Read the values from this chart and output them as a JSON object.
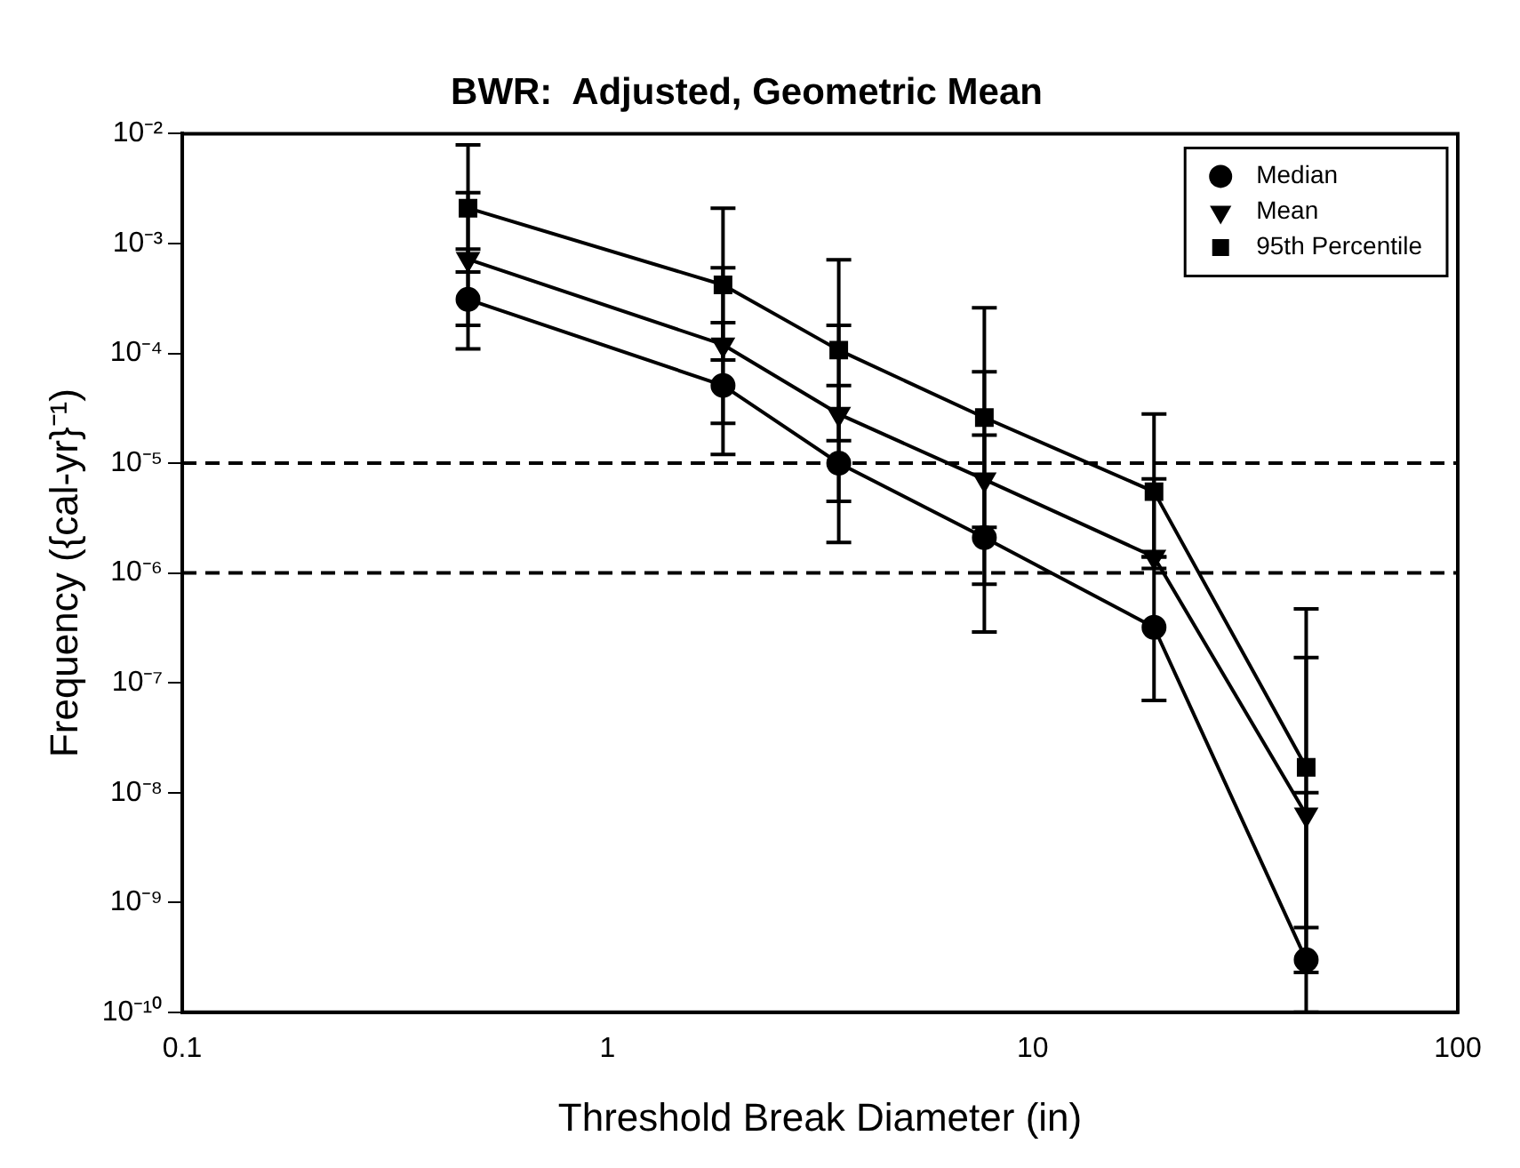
{
  "chart_data": {
    "type": "line",
    "title": "BWR:  Adjusted, Geometric Mean",
    "xlabel": "Threshold Break Diameter (in)",
    "ylabel": "Frequency ({cal-yr}⁻¹)",
    "x": [
      0.47,
      1.87,
      3.5,
      7.7,
      19.3,
      44
    ],
    "series": [
      {
        "name": "Median",
        "color": "#000000",
        "marker": "circle",
        "values": [
          0.00031,
          5.1e-05,
          1e-05,
          2.1e-06,
          3.2e-07,
          3e-10
        ],
        "errors": [
          [
            0.00011,
            0.00089
          ],
          [
            1.2e-05,
            0.00019
          ],
          [
            1.9e-06,
            5.1e-05
          ],
          [
            2.9e-07,
            1.8e-05
          ],
          [
            6.9e-08,
            1.4e-06
          ],
          [
            1e-10,
            1e-08
          ]
        ]
      },
      {
        "name": "Mean",
        "color": "#000000",
        "marker": "triangle",
        "values": [
          0.00072,
          0.00012,
          2.8e-05,
          7.1e-06,
          1.4e-06,
          6.3e-09
        ],
        "errors": [
          [
            0.00018,
            0.0029
          ],
          [
            2.3e-05,
            0.0006
          ],
          [
            4.5e-06,
            0.00018
          ],
          [
            7.9e-07,
            6.8e-05
          ],
          [
            1.4e-06,
            7.2e-06
          ],
          [
            2.3e-10,
            1.7e-07
          ]
        ]
      },
      {
        "name": "95th Percentile",
        "color": "#000000",
        "marker": "square",
        "values": [
          0.0021,
          0.00042,
          0.000107,
          2.6e-05,
          5.5e-06,
          1.7e-08
        ],
        "errors": [
          [
            0.00055,
            0.0079
          ],
          [
            8.7e-05,
            0.0021
          ],
          [
            1.6e-05,
            0.00071
          ],
          [
            2.6e-06,
            0.00026
          ],
          [
            1.1e-06,
            2.8e-05
          ],
          [
            5.9e-10,
            4.7e-07
          ]
        ]
      }
    ],
    "log": "xy",
    "xlim": [
      0.1,
      100
    ],
    "xticks": [
      0.1,
      1,
      10,
      100
    ],
    "ylim": [
      1e-10,
      0.01
    ],
    "yticks": [
      {
        "value": 1e-10,
        "label": "10⁻¹⁰"
      },
      {
        "value": 1e-09,
        "label": "10⁻⁹"
      },
      {
        "value": 1e-08,
        "label": "10⁻⁸"
      },
      {
        "value": 1e-07,
        "label": "10⁻⁷"
      },
      {
        "value": 1e-06,
        "label": "10⁻⁶"
      },
      {
        "value": 1e-05,
        "label": "10⁻⁵"
      },
      {
        "value": 0.0001,
        "label": "10⁻⁴"
      },
      {
        "value": 0.001,
        "label": "10⁻³"
      },
      {
        "value": 0.01,
        "label": "10⁻²"
      }
    ],
    "ref_lines": [
      {
        "axis": "y",
        "value": 1e-05,
        "line_style": "dashed"
      },
      {
        "axis": "y",
        "value": 1e-06,
        "line_style": "dashed"
      }
    ],
    "grid": false,
    "legend": "top right",
    "line_style": "solid"
  }
}
